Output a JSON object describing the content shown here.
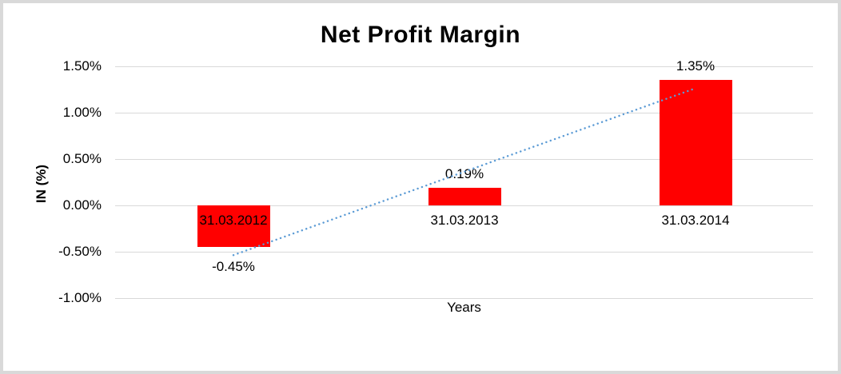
{
  "chart": {
    "colors": {
      "bar": "#ff0000",
      "trendline": "#5b9bd5",
      "gridline": "#d9d9d9",
      "frame_border": "#d9d9d9",
      "text": "#000000",
      "background": "#ffffff"
    }
  },
  "chart_data": {
    "type": "bar",
    "title": "Net Profit Margin",
    "xlabel": "Years",
    "ylabel": "IN (%)",
    "categories": [
      "31.03.2012",
      "31.03.2013",
      "31.03.2014"
    ],
    "values": [
      -0.45,
      0.19,
      1.35
    ],
    "data_labels": [
      "-0.45%",
      "0.19%",
      "1.35%"
    ],
    "y_ticks": [
      {
        "value": 1.5,
        "label": "1.50%"
      },
      {
        "value": 1.0,
        "label": "1.00%"
      },
      {
        "value": 0.5,
        "label": "0.50%"
      },
      {
        "value": 0.0,
        "label": "0.00%"
      },
      {
        "value": -0.5,
        "label": "-0.50%"
      },
      {
        "value": -1.0,
        "label": "-1.00%"
      }
    ],
    "ylim": [
      -1.0,
      1.5
    ],
    "grid": true,
    "legend": "none",
    "bar_color": "#ff0000",
    "gridline_color": "#d9d9d9",
    "trendline": {
      "type": "linear",
      "style": "dotted",
      "color": "#5b9bd5"
    }
  }
}
